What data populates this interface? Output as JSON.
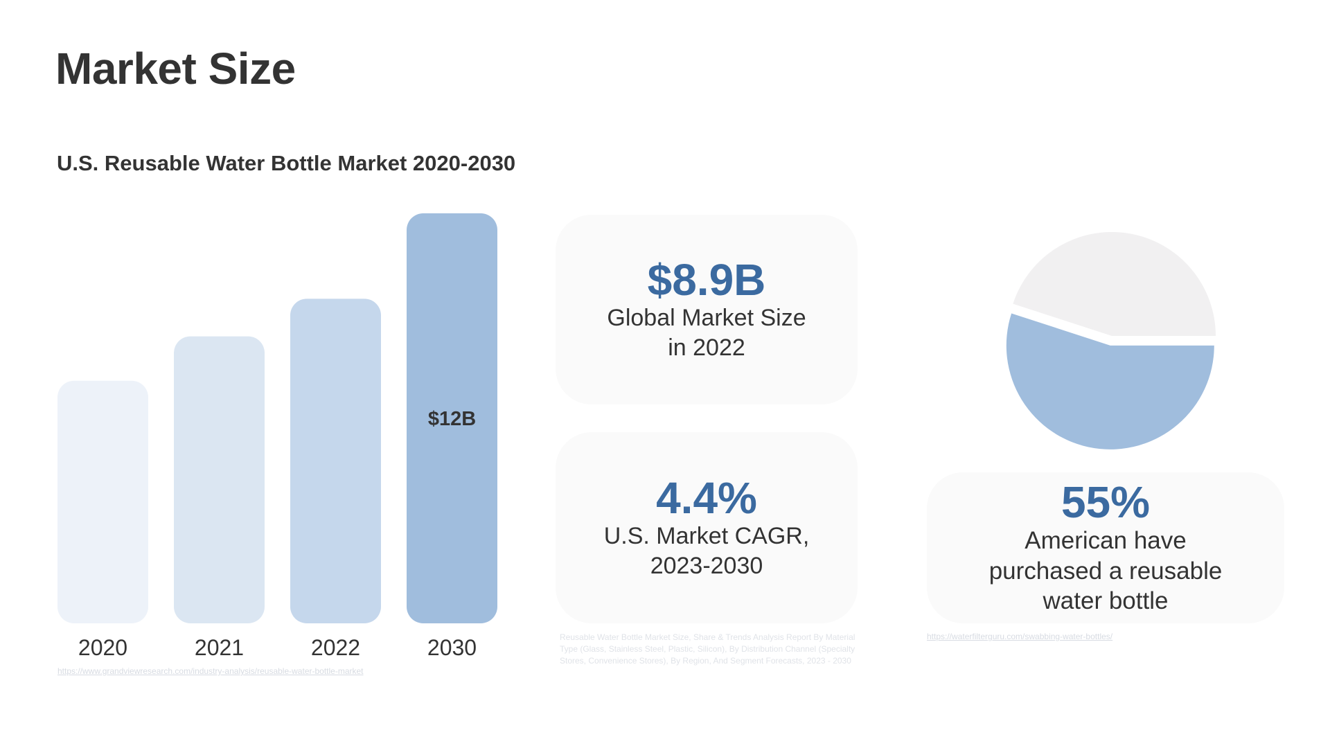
{
  "slide": {
    "title": "Market Size",
    "subtitle": "U.S. Reusable Water Bottle Market 2020-2030",
    "bar_source_url": "https://www.grandviewresearch.com/industry-analysis/reusable-water-bottle-market"
  },
  "cards": {
    "market": {
      "value": "$8.9B",
      "label": "Global Market Size\nin 2022"
    },
    "cagr": {
      "value": "4.4%",
      "label": "U.S. Market CAGR,\n2023-2030"
    },
    "pie": {
      "value": "55%",
      "label": "American have\npurchased a reusable\nwater bottle"
    }
  },
  "sources": {
    "report_text": "Reusable Water Bottle Market Size, Share & Trends Analysis Report By Material Type (Glass, Stainless Steel, Plastic, Silicon), By Distribution Channel (Specialty Stores, Convenience Stores), By Region, And Segment Forecasts, 2023 - 2030",
    "pie_source_url": "https://waterfilterguru.com/swabbing-water-bottles/"
  },
  "colors": {
    "accent": "#3b6aa0",
    "bar_colors": [
      "#edf2f9",
      "#dbe6f2",
      "#c5d7ec",
      "#a0bddd"
    ],
    "pie_highlight": "#a0bddd",
    "pie_rest": "#f1f0f1",
    "card_bg": "#fafafa"
  },
  "chart_data": [
    {
      "type": "bar",
      "categories": [
        "2020",
        "2021",
        "2022",
        "2030"
      ],
      "values": [
        7.1,
        8.4,
        9.5,
        12
      ],
      "data_labels": [
        "",
        "",
        "",
        "$12B"
      ],
      "ylim": [
        0,
        12
      ],
      "grid": false
    },
    {
      "type": "pie",
      "labels": [
        "",
        ""
      ],
      "values": [
        55,
        45
      ],
      "explode_first": true
    }
  ]
}
